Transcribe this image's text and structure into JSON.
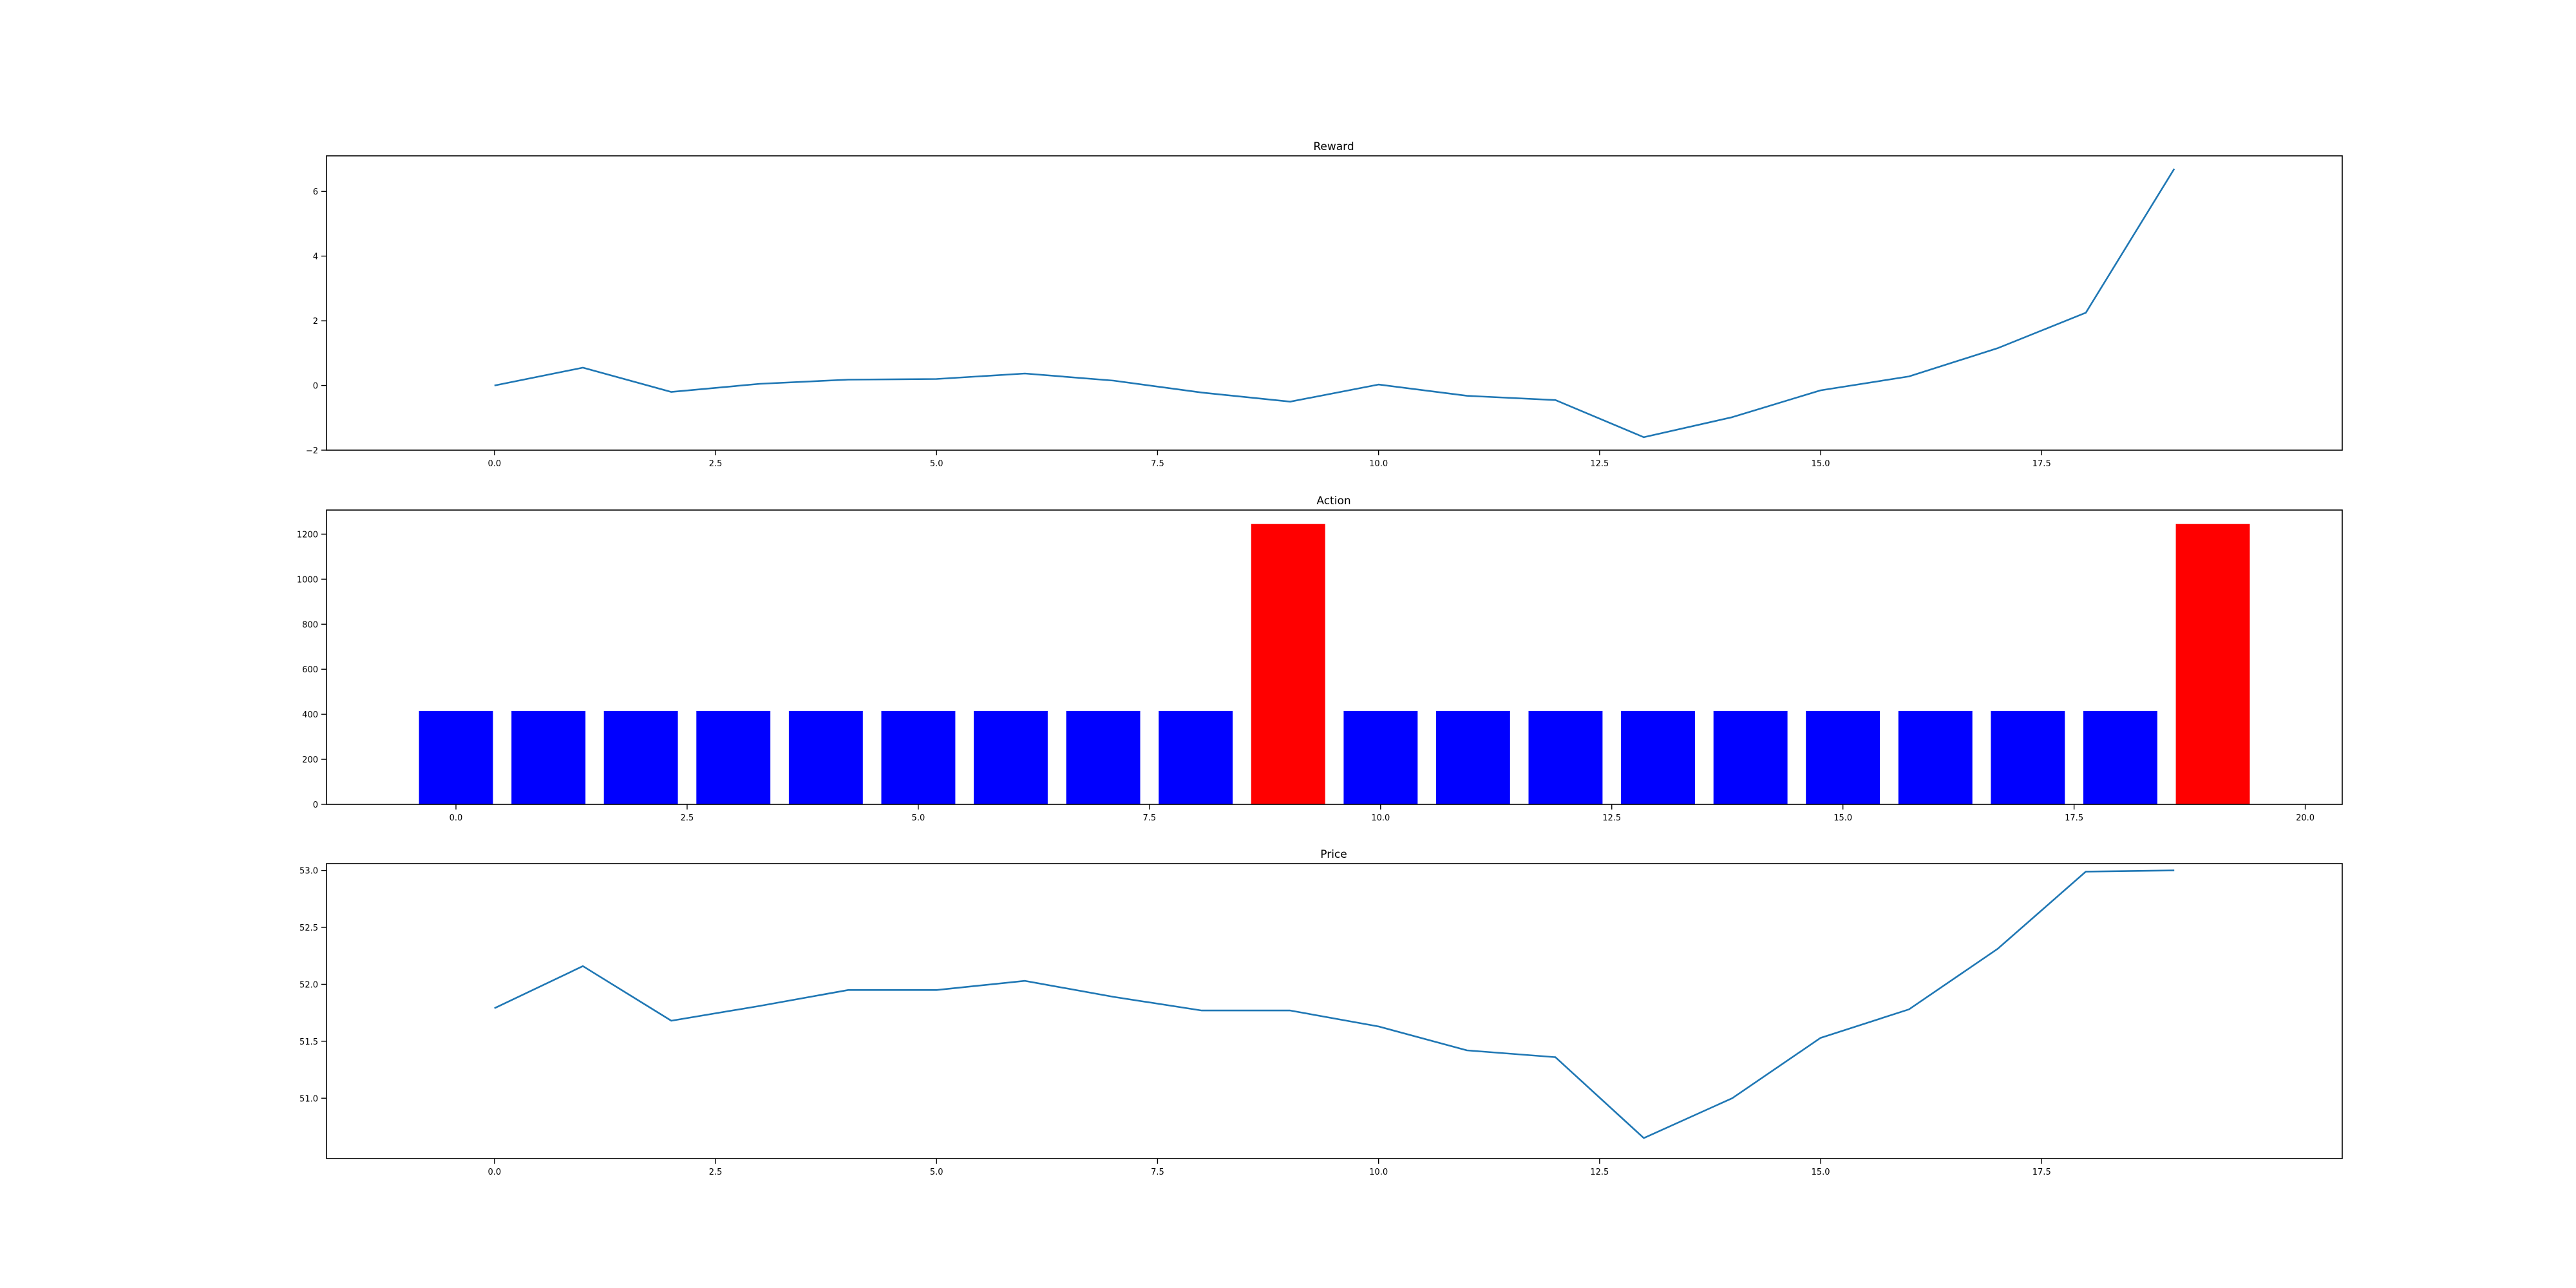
{
  "colors": {
    "line": "#1f77b4",
    "bar_default": "#0000ff",
    "bar_highlight": "#ff0000"
  },
  "chart_data": [
    {
      "type": "line",
      "title": "Reward",
      "xlabel": "",
      "ylabel": "",
      "x": [
        0,
        1,
        2,
        3,
        4,
        5,
        6,
        7,
        8,
        9,
        10,
        11,
        12,
        13,
        14,
        15,
        16,
        17,
        18,
        19
      ],
      "series": [
        {
          "values": [
            0.0,
            0.55,
            -0.2,
            0.05,
            0.18,
            0.2,
            0.37,
            0.15,
            -0.22,
            -0.5,
            0.03,
            -0.32,
            -0.45,
            -1.6,
            -0.98,
            -0.15,
            0.28,
            1.15,
            2.25,
            6.7
          ]
        }
      ],
      "xlim": [
        -1.9,
        20.9
      ],
      "ylim": [
        -2,
        7.1
      ],
      "xticks": [
        "0.0",
        "2.5",
        "5.0",
        "7.5",
        "10.0",
        "12.5",
        "15.0",
        "17.5"
      ],
      "yticks": [
        "−2",
        "0",
        "2",
        "4",
        "6"
      ],
      "grid": false
    },
    {
      "type": "bar",
      "title": "Action",
      "xlabel": "",
      "ylabel": "",
      "x": [
        0,
        1,
        2,
        3,
        4,
        5,
        6,
        7,
        8,
        9,
        10,
        11,
        12,
        13,
        14,
        15,
        16,
        17,
        18,
        19
      ],
      "values": [
        415,
        415,
        415,
        415,
        415,
        415,
        415,
        415,
        415,
        1245,
        415,
        415,
        415,
        415,
        415,
        415,
        415,
        415,
        415,
        1245
      ],
      "bar_colors": [
        "#0000ff",
        "#0000ff",
        "#0000ff",
        "#0000ff",
        "#0000ff",
        "#0000ff",
        "#0000ff",
        "#0000ff",
        "#0000ff",
        "#ff0000",
        "#0000ff",
        "#0000ff",
        "#0000ff",
        "#0000ff",
        "#0000ff",
        "#0000ff",
        "#0000ff",
        "#0000ff",
        "#0000ff",
        "#ff0000"
      ],
      "xlim": [
        -1.4,
        20.4
      ],
      "ylim": [
        0,
        1307
      ],
      "xticks": [
        "0.0",
        "2.5",
        "5.0",
        "7.5",
        "10.0",
        "12.5",
        "15.0",
        "17.5",
        "20.0"
      ],
      "yticks": [
        "0",
        "200",
        "400",
        "600",
        "800",
        "1000",
        "1200"
      ],
      "grid": false
    },
    {
      "type": "line",
      "title": "Price",
      "xlabel": "",
      "ylabel": "",
      "x": [
        0,
        1,
        2,
        3,
        4,
        5,
        6,
        7,
        8,
        9,
        10,
        11,
        12,
        13,
        14,
        15,
        16,
        17,
        18,
        19
      ],
      "series": [
        {
          "values": [
            51.79,
            52.16,
            51.68,
            51.81,
            51.95,
            51.95,
            52.03,
            51.89,
            51.77,
            51.77,
            51.63,
            51.42,
            51.36,
            50.65,
            51.0,
            51.53,
            51.78,
            52.31,
            52.99,
            53.0
          ]
        }
      ],
      "xlim": [
        -1.9,
        20.9
      ],
      "ylim": [
        50.47,
        53.06
      ],
      "xticks": [
        "0.0",
        "2.5",
        "5.0",
        "7.5",
        "10.0",
        "12.5",
        "15.0",
        "17.5"
      ],
      "yticks": [
        "51.0",
        "51.5",
        "52.0",
        "52.5",
        "53.0"
      ],
      "grid": false
    }
  ]
}
